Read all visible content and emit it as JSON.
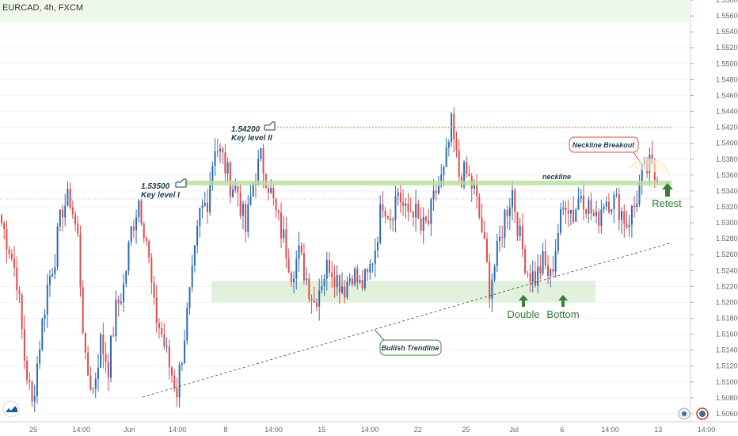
{
  "symbol": "EURCAD, 4h, FXCM",
  "colors": {
    "up": "#2a6bb5",
    "down": "#e04b4b",
    "zone": "#d7ecd0",
    "line": "#b7dd9a",
    "resist": "#e8b89a",
    "arrow": "#3b7d3b"
  },
  "chart_data": {
    "type": "candlestick",
    "title": "EURCAD, 4h, FXCM",
    "ylim": [
      1.505,
      1.558
    ],
    "y_ticks": [
      "1.55800",
      "1.55600",
      "1.55400",
      "1.55200",
      "1.55000",
      "1.54800",
      "1.54600",
      "1.54400",
      "1.54200",
      "1.54000",
      "1.53800",
      "1.53600",
      "1.53400",
      "1.53200",
      "1.53000",
      "1.52800",
      "1.52600",
      "1.52400",
      "1.52200",
      "1.52000",
      "1.51800",
      "1.51600",
      "1.51400",
      "1.51200",
      "1.51000",
      "1.50800",
      "1.50600"
    ],
    "x_ticks": [
      "25",
      "14:00",
      "Jun",
      "14:00",
      "8",
      "14:00",
      "15",
      "14:00",
      "22",
      "25",
      "Jul",
      "6",
      "14:00",
      "13",
      "14:00"
    ],
    "levels": [
      {
        "value": 1.542,
        "price": "1.54200",
        "label": "Key level II"
      },
      {
        "value": 1.535,
        "price": "1.53500",
        "label": "Key level I"
      }
    ],
    "demand_zone": [
      1.52,
      1.5227
    ],
    "neckline_label": "neckline",
    "annotations": {
      "breakout": "Neckline Breakout",
      "retest": "Retest",
      "trendline": "Bullish Trendline",
      "double": "Double",
      "bottom": "Bottom"
    },
    "path": [
      1.53,
      1.527,
      1.523,
      1.513,
      1.507,
      1.515,
      1.522,
      1.526,
      1.532,
      1.533,
      1.528,
      1.512,
      1.509,
      1.515,
      1.512,
      1.519,
      1.522,
      1.529,
      1.533,
      1.528,
      1.519,
      1.516,
      1.512,
      1.509,
      1.516,
      1.523,
      1.531,
      1.533,
      1.54,
      1.538,
      1.535,
      1.534,
      1.529,
      1.535,
      1.538,
      1.535,
      1.531,
      1.528,
      1.524,
      1.526,
      1.523,
      1.52,
      1.523,
      1.525,
      1.523,
      1.522,
      1.524,
      1.522,
      1.523,
      1.527,
      1.533,
      1.531,
      1.534,
      1.531,
      1.532,
      1.529,
      1.53,
      1.534,
      1.536,
      1.542,
      1.536,
      1.536,
      1.534,
      1.529,
      1.522,
      1.526,
      1.531,
      1.534,
      1.528,
      1.524,
      1.523,
      1.525,
      1.523,
      1.529,
      1.533,
      1.531,
      1.534,
      1.532,
      1.53,
      1.533,
      1.533,
      1.532,
      1.53,
      1.532,
      1.536,
      1.537,
      1.535
    ],
    "candles_per_step": 3
  }
}
